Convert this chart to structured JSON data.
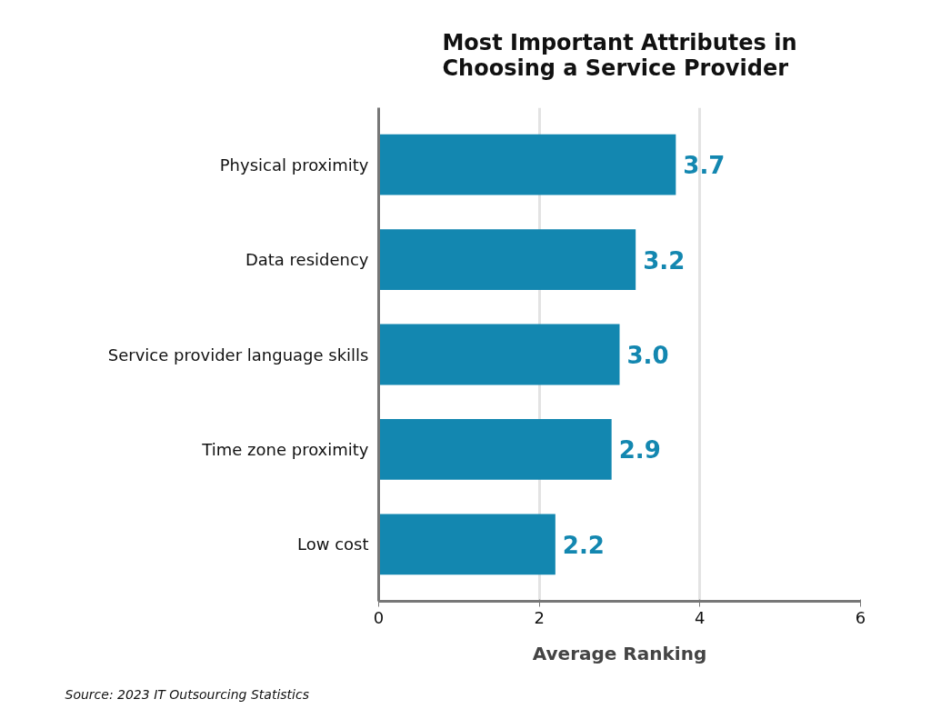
{
  "chart_data": {
    "type": "bar",
    "orientation": "horizontal",
    "title": "Most Important Attributes in Choosing a Service Provider",
    "categories": [
      "Physical proximity",
      "Data residency",
      "Service provider language skills",
      "Time zone proximity",
      "Low cost"
    ],
    "values": [
      3.7,
      3.2,
      3.0,
      2.9,
      2.2
    ],
    "color": "#1387b0",
    "data_labels": true,
    "value_labels": [
      "3.7",
      "3.2",
      "3.0",
      "2.9",
      "2.2"
    ],
    "xlabel": "Average Ranking",
    "xlim": [
      0,
      6
    ],
    "xticks": [
      0,
      2,
      4,
      6
    ],
    "grid": "x",
    "annotations": [
      "Source: 2023 IT Outsourcing Statistics"
    ]
  }
}
